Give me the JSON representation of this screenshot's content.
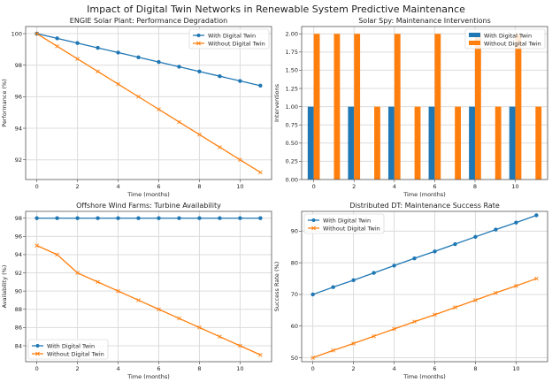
{
  "figure_title": "Impact of Digital Twin Networks in Renewable System Predictive Maintenance",
  "colors": {
    "with": "#1f77b4",
    "without": "#ff7f0e"
  },
  "chart_data": [
    {
      "type": "line",
      "title": "ENGIE Solar Plant: Performance Degradation",
      "xlabel": "Time (months)",
      "ylabel": "Performance (%)",
      "x": [
        0,
        1,
        2,
        3,
        4,
        5,
        6,
        7,
        8,
        9,
        10,
        11
      ],
      "xlim": [
        -0.55,
        11.55
      ],
      "ylim": [
        90.75,
        100.45
      ],
      "xticks": [
        0,
        2,
        4,
        6,
        8,
        10
      ],
      "yticks": [
        92,
        94,
        96,
        98,
        100
      ],
      "ytick_labels": [
        "92",
        "94",
        "96",
        "98",
        "100"
      ],
      "grid": true,
      "legend": "top-right",
      "series": [
        {
          "name": "With Digital Twin",
          "marker": "circle",
          "values": [
            100,
            99.7,
            99.4,
            99.1,
            98.8,
            98.5,
            98.2,
            97.9,
            97.6,
            97.3,
            97.0,
            96.7
          ]
        },
        {
          "name": "Without Digital Twin",
          "marker": "x",
          "values": [
            100,
            99.2,
            98.4,
            97.6,
            96.8,
            96.0,
            95.2,
            94.4,
            93.6,
            92.8,
            92.0,
            91.2
          ]
        }
      ]
    },
    {
      "type": "bar",
      "title": "Solar Spy: Maintenance Interventions",
      "xlabel": "Time (months)",
      "ylabel": "Interventions",
      "x": [
        0,
        1,
        2,
        3,
        4,
        5,
        6,
        7,
        8,
        9,
        10,
        11
      ],
      "xlim": [
        -0.6,
        11.6
      ],
      "ylim": [
        0,
        2.1
      ],
      "xticks": [
        0,
        2,
        4,
        6,
        8,
        10
      ],
      "yticks": [
        0,
        0.25,
        0.5,
        0.75,
        1,
        1.25,
        1.5,
        1.75,
        2
      ],
      "ytick_labels": [
        "0.00",
        "0.25",
        "0.50",
        "0.75",
        "1.00",
        "1.25",
        "1.50",
        "1.75",
        "2.00"
      ],
      "grid": true,
      "legend": "top-right",
      "series": [
        {
          "name": "With Digital Twin",
          "values": [
            1,
            0,
            1,
            0,
            1,
            0,
            1,
            0,
            1,
            0,
            1,
            0
          ]
        },
        {
          "name": "Without Digital Twin",
          "values": [
            2,
            2,
            2,
            1,
            2,
            1,
            2,
            1,
            2,
            1,
            2,
            1
          ]
        }
      ]
    },
    {
      "type": "line",
      "title": "Offshore Wind Farms: Turbine Availability",
      "xlabel": "Time (months)",
      "ylabel": "Availability (%)",
      "x": [
        0,
        1,
        2,
        3,
        4,
        5,
        6,
        7,
        8,
        9,
        10,
        11
      ],
      "xlim": [
        -0.55,
        11.55
      ],
      "ylim": [
        82.25,
        98.75
      ],
      "xticks": [
        0,
        2,
        4,
        6,
        8,
        10
      ],
      "yticks": [
        84,
        86,
        88,
        90,
        92,
        94,
        96,
        98
      ],
      "ytick_labels": [
        "84",
        "86",
        "88",
        "90",
        "92",
        "94",
        "96",
        "98"
      ],
      "grid": true,
      "legend": "bottom-left",
      "series": [
        {
          "name": "With Digital Twin",
          "marker": "circle",
          "values": [
            98,
            98,
            98,
            98,
            98,
            98,
            98,
            98,
            98,
            98,
            98,
            98
          ]
        },
        {
          "name": "Without Digital Twin",
          "marker": "x",
          "values": [
            95,
            94,
            92,
            91,
            90,
            89,
            88,
            87,
            86,
            85,
            84,
            83
          ]
        }
      ]
    },
    {
      "type": "line",
      "title": "Distributed DT: Maintenance Success Rate",
      "xlabel": "Time (months)",
      "ylabel": "Success Rate (%)",
      "x": [
        0,
        1,
        2,
        3,
        4,
        5,
        6,
        7,
        8,
        9,
        10,
        11
      ],
      "xlim": [
        -0.55,
        11.55
      ],
      "ylim": [
        48.75,
        96.25
      ],
      "xticks": [
        0,
        2,
        4,
        6,
        8,
        10
      ],
      "yticks": [
        50,
        60,
        70,
        80,
        90
      ],
      "ytick_labels": [
        "50",
        "60",
        "70",
        "80",
        "90"
      ],
      "grid": true,
      "legend": "top-left",
      "series": [
        {
          "name": "With Digital Twin",
          "marker": "circle",
          "values": [
            70,
            72.3,
            74.5,
            76.8,
            79.1,
            81.4,
            83.6,
            85.9,
            88.2,
            90.5,
            92.7,
            95
          ]
        },
        {
          "name": "Without Digital Twin",
          "marker": "x",
          "values": [
            50,
            52.3,
            54.5,
            56.8,
            59.1,
            61.4,
            63.6,
            65.9,
            68.2,
            70.5,
            72.7,
            75
          ]
        }
      ]
    }
  ]
}
